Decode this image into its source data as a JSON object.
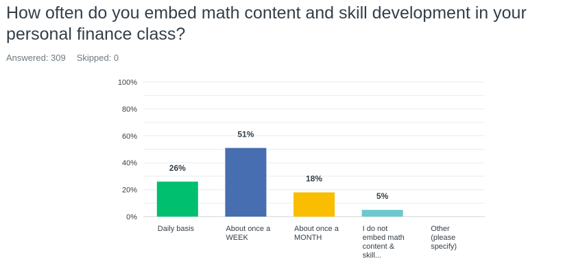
{
  "question": {
    "title": "How often do you embed math content and skill development in your personal finance class?"
  },
  "stats": {
    "answered_label": "Answered: 309",
    "skipped_label": "Skipped: 0"
  },
  "chart_data": {
    "type": "bar",
    "categories": [
      [
        "Daily basis"
      ],
      [
        "About once a",
        "WEEK"
      ],
      [
        "About once a",
        "MONTH"
      ],
      [
        "I do not",
        "embed math",
        "content &",
        "skill..."
      ],
      [
        "Other",
        "(please",
        "specify)"
      ]
    ],
    "values": [
      26,
      51,
      18,
      5,
      0
    ],
    "data_labels": [
      "26%",
      "51%",
      "18%",
      "5%",
      ""
    ],
    "colors": [
      "#00bf6f",
      "#466eb0",
      "#f9be00",
      "#6bc8cd",
      "#cccccc"
    ],
    "ylim": [
      0,
      100
    ],
    "yticks": [
      0,
      20,
      40,
      60,
      80,
      100
    ],
    "ytick_labels": [
      "0%",
      "20%",
      "40%",
      "60%",
      "80%",
      "100%"
    ],
    "grid": true,
    "xlabel": "",
    "ylabel": ""
  }
}
